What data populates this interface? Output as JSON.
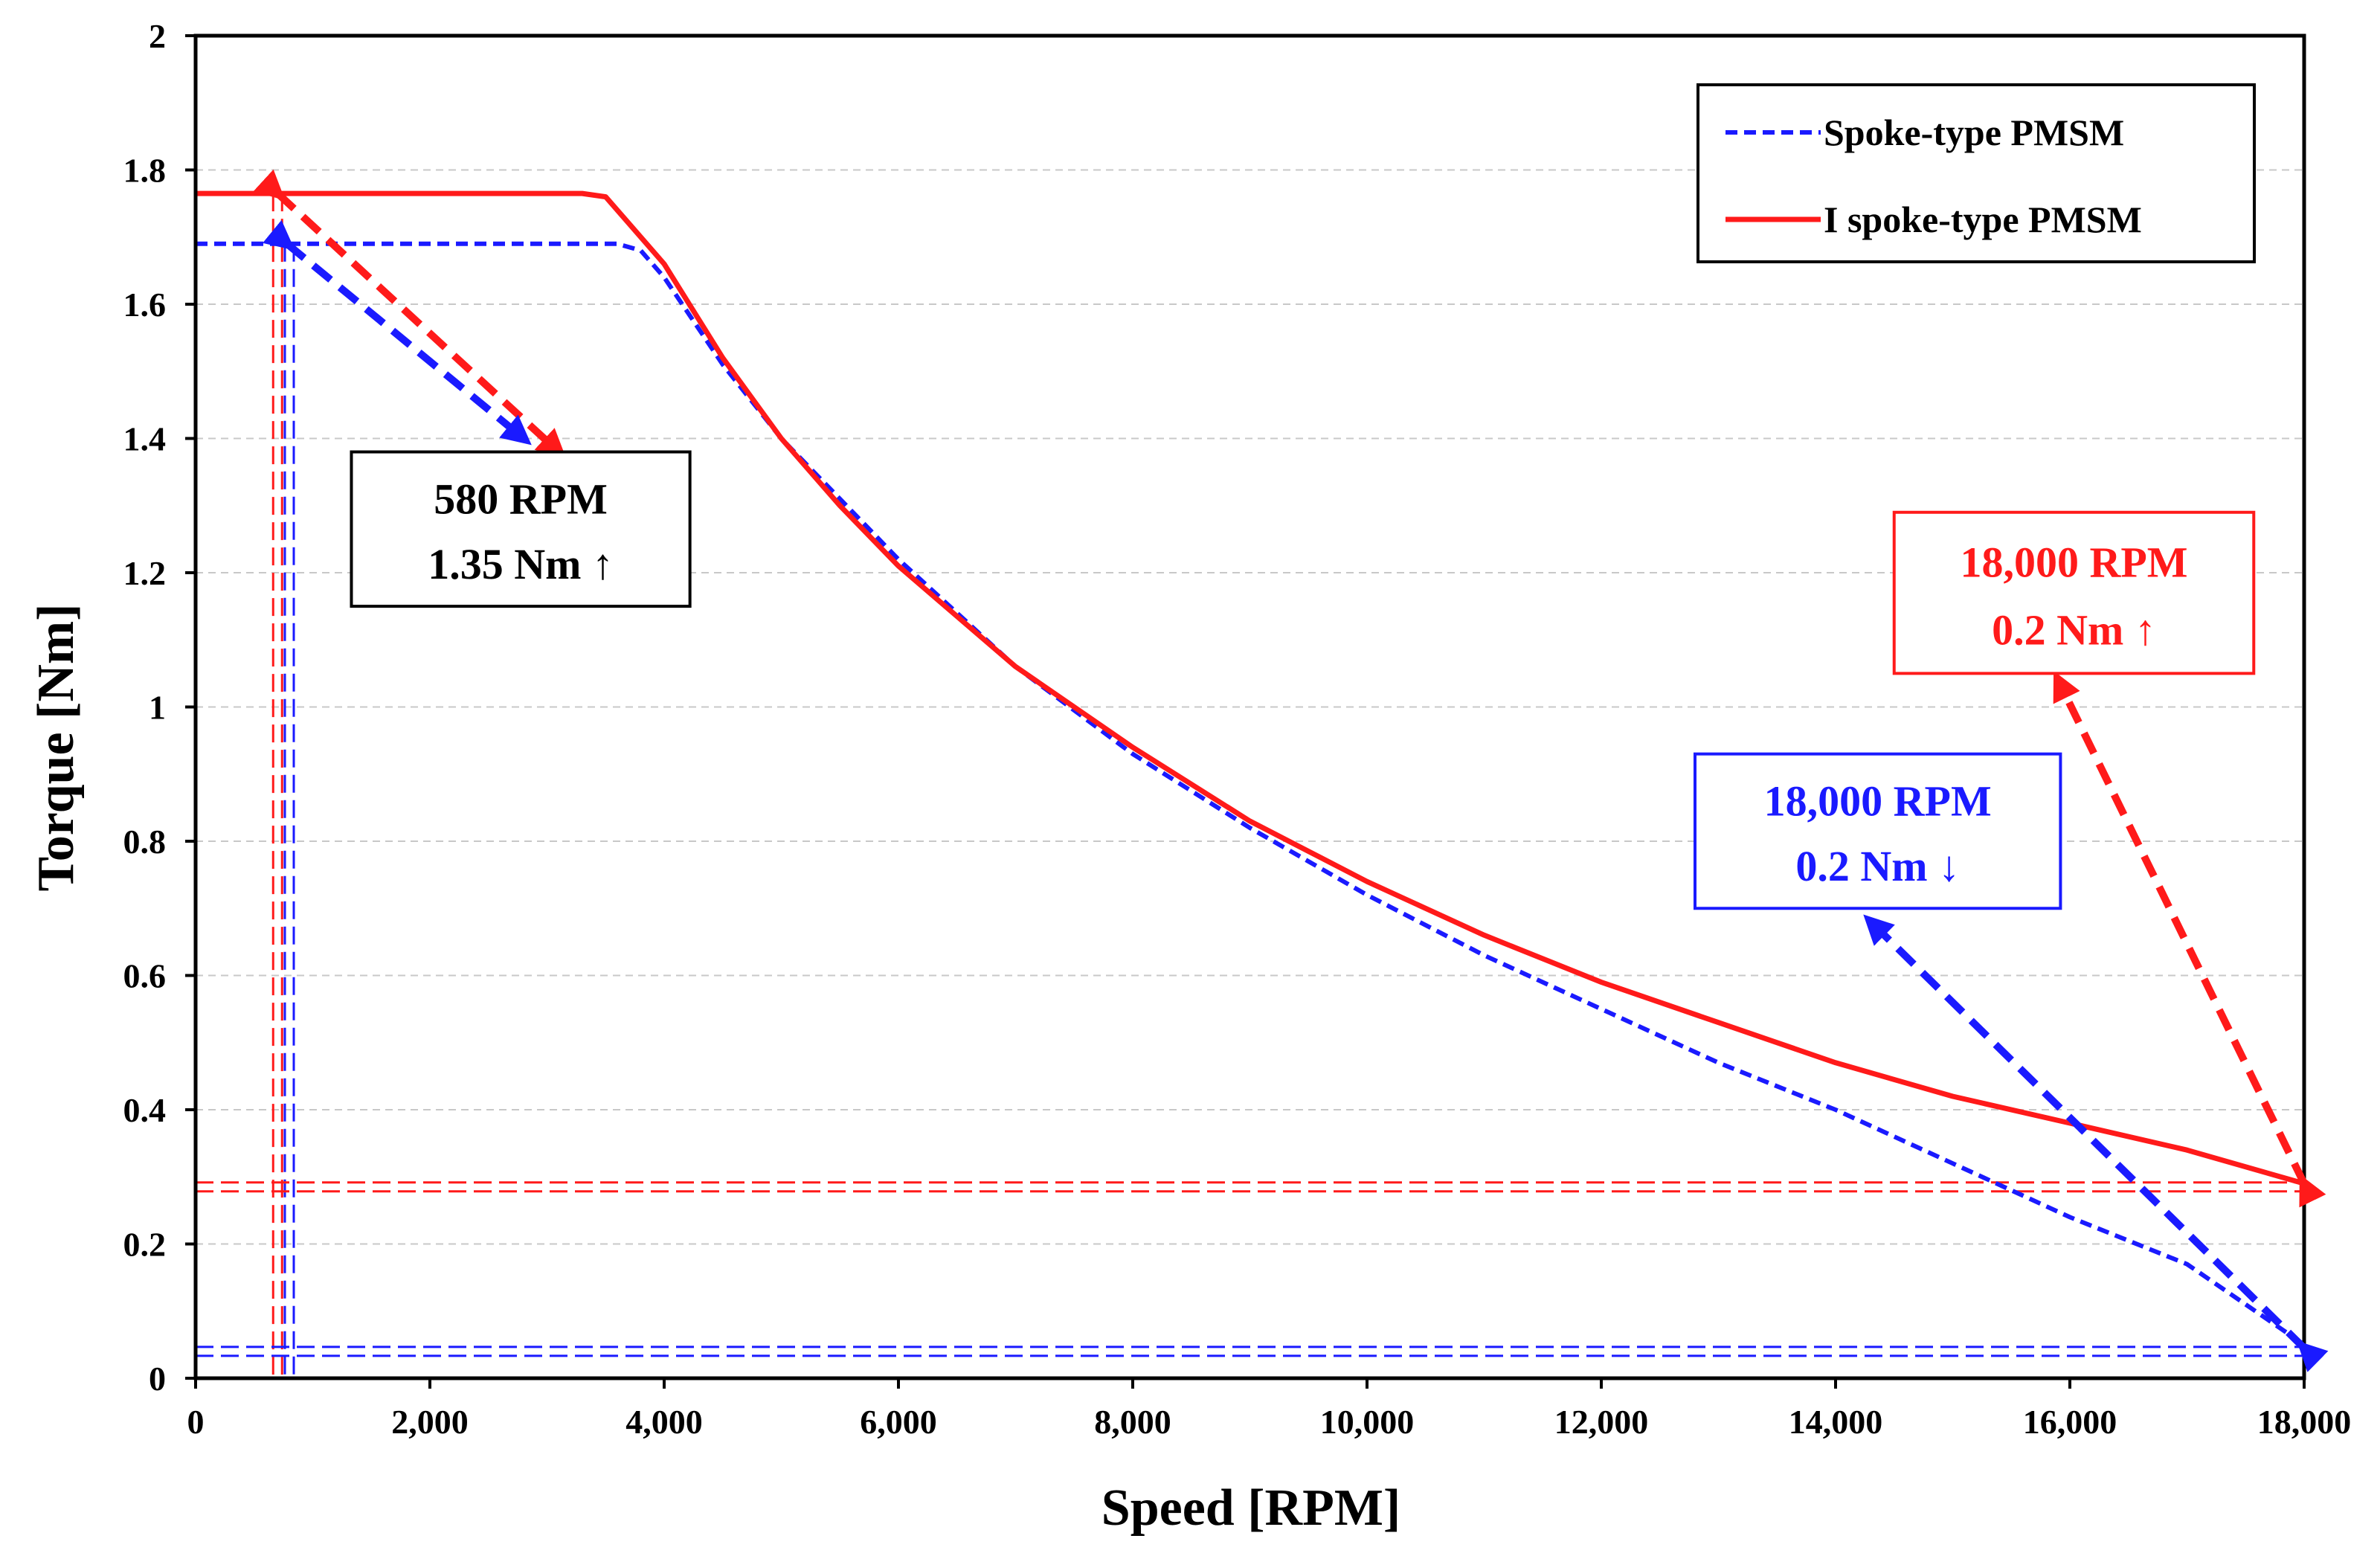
{
  "chart_data": {
    "type": "line",
    "xlabel": "Speed [RPM]",
    "ylabel": "Torque [Nm]",
    "xlim": [
      0,
      18000
    ],
    "ylim": [
      0,
      2
    ],
    "x_ticks": [
      0,
      2000,
      4000,
      6000,
      8000,
      10000,
      12000,
      14000,
      16000,
      18000
    ],
    "x_tick_labels": [
      "0",
      "2,000",
      "4,000",
      "6,000",
      "8,000",
      "10,000",
      "12,000",
      "14,000",
      "16,000",
      "18,000"
    ],
    "y_ticks": [
      0,
      0.2,
      0.4,
      0.6,
      0.8,
      1.0,
      1.2,
      1.4,
      1.6,
      1.8,
      2.0
    ],
    "y_tick_labels": [
      "0",
      "0.2",
      "0.4",
      "0.6",
      "0.8",
      "1",
      "1.2",
      "1.4",
      "1.6",
      "1.8",
      "2"
    ],
    "grid": "horizontal dashed",
    "legend_position": "top-right",
    "series": [
      {
        "name": "Spoke-type PMSM",
        "color": "#1a1aff",
        "style": "dashed",
        "x": [
          0,
          3000,
          3600,
          3800,
          4000,
          4500,
          5000,
          5500,
          6000,
          7000,
          8000,
          9000,
          10000,
          11000,
          12000,
          13000,
          14000,
          15000,
          16000,
          17000,
          17500,
          18000
        ],
        "y": [
          1.69,
          1.69,
          1.69,
          1.68,
          1.64,
          1.51,
          1.4,
          1.31,
          1.22,
          1.06,
          0.93,
          0.82,
          0.72,
          0.63,
          0.55,
          0.47,
          0.4,
          0.32,
          0.24,
          0.17,
          0.11,
          0.05
        ]
      },
      {
        "name": "I spoke-type PMSM",
        "color": "#ff1a1a",
        "style": "solid",
        "x": [
          0,
          3000,
          3300,
          3500,
          3700,
          4000,
          4500,
          5000,
          5500,
          6000,
          7000,
          8000,
          9000,
          10000,
          11000,
          12000,
          13000,
          14000,
          15000,
          16000,
          17000,
          18000
        ],
        "y": [
          1.765,
          1.765,
          1.765,
          1.76,
          1.72,
          1.66,
          1.52,
          1.4,
          1.3,
          1.21,
          1.06,
          0.94,
          0.83,
          0.74,
          0.66,
          0.59,
          0.53,
          0.47,
          0.42,
          0.38,
          0.34,
          0.29
        ]
      }
    ],
    "reference_lines": [
      {
        "series": "I spoke-type PMSM",
        "orientation": "vertical",
        "value": 700,
        "color": "#ff1a1a"
      },
      {
        "series": "Spoke-type PMSM",
        "orientation": "vertical",
        "value": 800,
        "color": "#1a1aff"
      },
      {
        "series": "I spoke-type PMSM",
        "orientation": "horizontal",
        "value": 0.285,
        "color": "#ff1a1a"
      },
      {
        "series": "Spoke-type PMSM",
        "orientation": "horizontal",
        "value": 0.04,
        "color": "#1a1aff"
      }
    ],
    "annotations": [
      {
        "id": "low-speed",
        "lines": [
          "580 RPM",
          "1.35 Nm ↑"
        ],
        "text_color": "#000000",
        "border_color": "#000000",
        "box": {
          "x0": 1330,
          "y1": 1.38,
          "x1": 4220,
          "y0": 1.15
        },
        "arrows": [
          {
            "color": "#ff1a1a",
            "from": [
              700,
              1.765
            ],
            "to": [
              3100,
              1.38
            ]
          },
          {
            "color": "#1a1aff",
            "from": [
              780,
              1.69
            ],
            "to": [
              2800,
              1.4
            ]
          }
        ]
      },
      {
        "id": "high-speed-blue",
        "lines": [
          "18,000 RPM",
          "0.2 Nm ↓"
        ],
        "text_color": "#1a1aff",
        "border_color": "#1a1aff",
        "box": {
          "x0": 12800,
          "y1": 0.93,
          "x1": 15920,
          "y0": 0.7
        },
        "arrows": [
          {
            "color": "#1a1aff",
            "from": [
              18000,
              0.045
            ],
            "to": [
              14300,
              0.68
            ]
          }
        ]
      },
      {
        "id": "high-speed-red",
        "lines": [
          "18,000 RPM",
          "0.2 Nm ↑"
        ],
        "text_color": "#ff1a1a",
        "border_color": "#ff1a1a",
        "box": {
          "x0": 14500,
          "y1": 1.29,
          "x1": 17570,
          "y0": 1.05
        },
        "arrows": [
          {
            "color": "#ff1a1a",
            "from": [
              18000,
              0.29
            ],
            "to": [
              15900,
              1.04
            ]
          }
        ]
      }
    ]
  }
}
